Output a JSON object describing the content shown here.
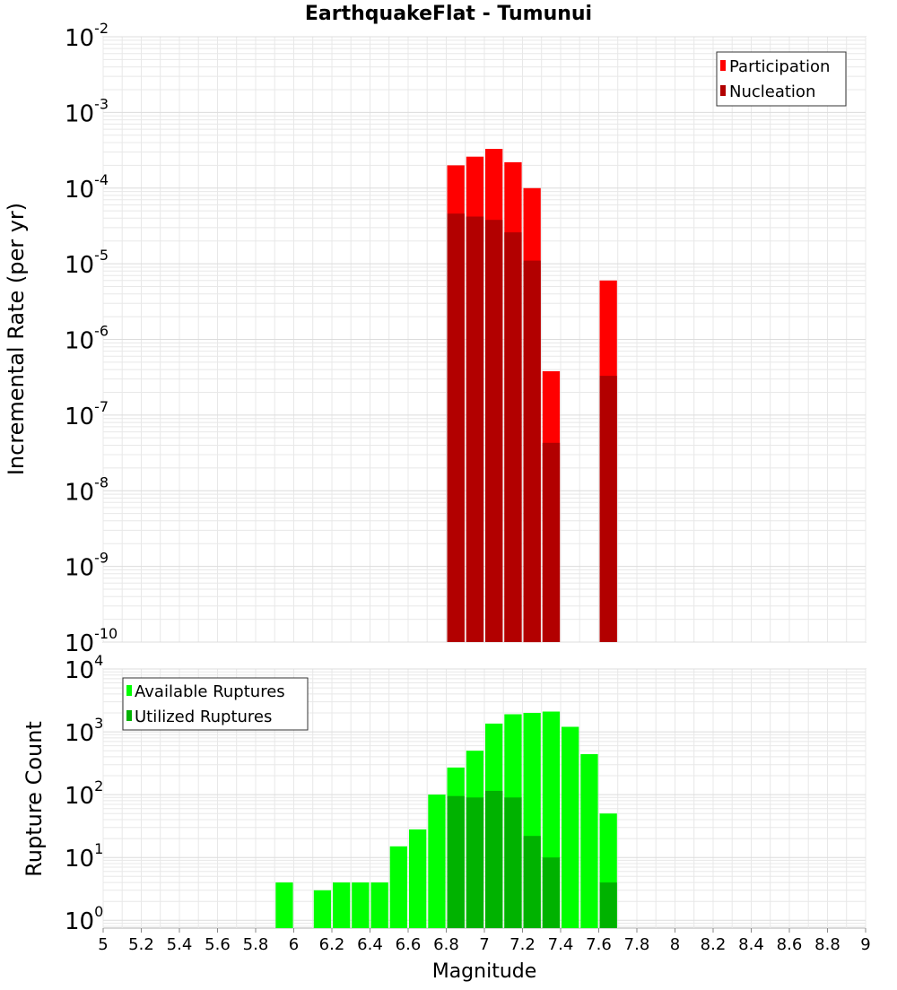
{
  "title": "EarthquakeFlat - Tumunui",
  "colors": {
    "participation": "#ff0000",
    "nucleation": "#b20000",
    "available": "#00ff00",
    "utilized": "#00b200",
    "grid": "#e8e8e8",
    "axis": "#b0b0b0"
  },
  "chart_data": [
    {
      "type": "bar",
      "name": "rate",
      "title": "EarthquakeFlat - Tumunui",
      "ylabel": "Incremental Rate (per yr)",
      "xlabel": "",
      "xlim": [
        5,
        9
      ],
      "ylim": [
        1e-10,
        0.01
      ],
      "yscale": "log",
      "y_tick_exponents": [
        -2,
        -3,
        -4,
        -5,
        -6,
        -7,
        -8,
        -9,
        -10
      ],
      "grid": true,
      "legend_position": "top-right",
      "bin_width": 0.1,
      "x": [
        6.85,
        6.95,
        7.05,
        7.15,
        7.25,
        7.35,
        7.65
      ],
      "series": [
        {
          "name": "Participation",
          "values": [
            0.0002,
            0.00026,
            0.00033,
            0.00022,
            0.0001,
            3.8e-07,
            6e-06
          ]
        },
        {
          "name": "Nucleation",
          "values": [
            4.6e-05,
            4.2e-05,
            3.8e-05,
            2.6e-05,
            1.1e-05,
            4.3e-08,
            3.3e-07
          ]
        }
      ]
    },
    {
      "type": "bar",
      "name": "count",
      "ylabel": "Rupture Count",
      "xlabel": "Magnitude",
      "xlim": [
        5,
        9
      ],
      "ylim": [
        0.75,
        10000
      ],
      "yscale": "log",
      "y_tick_exponents": [
        4,
        3,
        2,
        1,
        0
      ],
      "x_ticks": [
        "5",
        "5.2",
        "5.4",
        "5.6",
        "5.8",
        "6",
        "6.2",
        "6.4",
        "6.6",
        "6.8",
        "7",
        "7.2",
        "7.4",
        "7.6",
        "7.8",
        "8",
        "8.2",
        "8.4",
        "8.6",
        "8.8",
        "9"
      ],
      "grid": true,
      "legend_position": "top-left",
      "bin_width": 0.1,
      "x": [
        5.95,
        6.15,
        6.25,
        6.35,
        6.45,
        6.55,
        6.65,
        6.75,
        6.85,
        6.95,
        7.05,
        7.15,
        7.25,
        7.35,
        7.45,
        7.55,
        7.65
      ],
      "series": [
        {
          "name": "Available Ruptures",
          "values": [
            4,
            3,
            4,
            4,
            4,
            15,
            28,
            100,
            270,
            500,
            1350,
            1900,
            2000,
            2100,
            1200,
            440,
            50
          ]
        },
        {
          "name": "Utilized Ruptures",
          "values": [
            0,
            0,
            0,
            0,
            0,
            0,
            0,
            0,
            95,
            90,
            115,
            90,
            22,
            10,
            0,
            0,
            4
          ]
        }
      ]
    }
  ]
}
